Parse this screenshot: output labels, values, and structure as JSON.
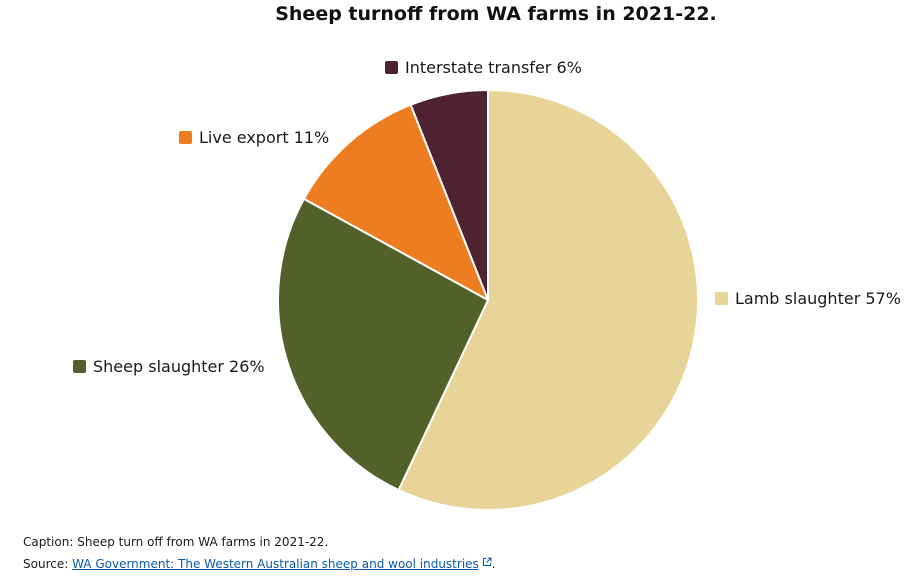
{
  "chart_data": {
    "type": "pie",
    "title": "Sheep turnoff from WA farms in 2021-22.",
    "slices": [
      {
        "label": "Lamb slaughter",
        "value": 57,
        "value_label": "57%",
        "color": "#e8d496"
      },
      {
        "label": "Sheep slaughter",
        "value": 26,
        "value_label": "26%",
        "color": "#52602a"
      },
      {
        "label": "Live export",
        "value": 11,
        "value_label": "11%",
        "color": "#ee7d22"
      },
      {
        "label": "Interstate transfer",
        "value": 6,
        "value_label": "6%",
        "color": "#4e2230"
      }
    ],
    "legend_placement": "around pie (outside labels)"
  },
  "footer": {
    "caption_prefix": "Caption:",
    "caption_text": "Sheep turn off from WA farms in 2021-22.",
    "source_prefix": "Source:",
    "source_link_text": "WA Government: The Western Australian sheep and wool industries",
    "source_suffix": ".",
    "source_link_icon": "external-link-icon"
  },
  "colors": {
    "slice_border": "#ffffff",
    "link": "#0b5aa8"
  }
}
